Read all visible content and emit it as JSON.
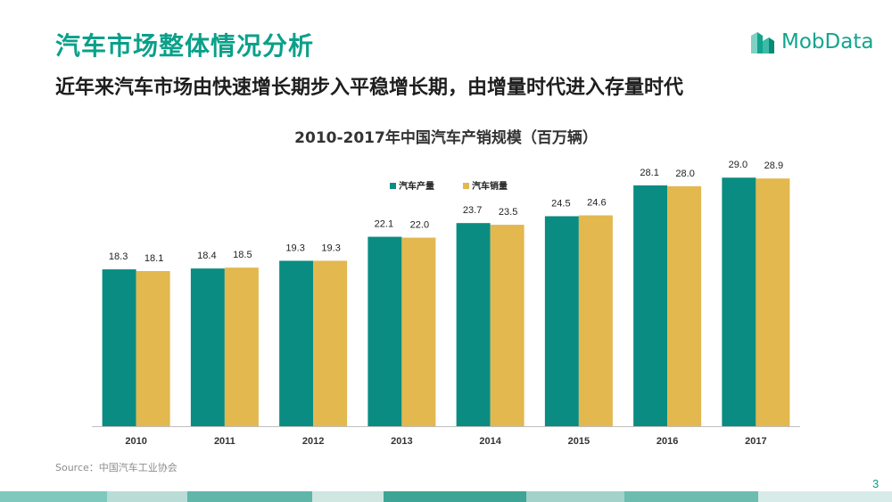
{
  "header": {
    "title": "汽车市场整体情况分析",
    "subtitle": "近年来汽车市场由快速增长期步入平稳增长期，由增量时代进入存量时代"
  },
  "logo": {
    "text": "MobData",
    "icon": "buildings-logo-icon"
  },
  "source": "Source：中国汽车工业协会",
  "page_number": "3",
  "colors": {
    "brand": "#0aa08a",
    "production": "#0a8c82",
    "sales": "#e2b84f",
    "footer_band": [
      "#7fc8bd",
      "#b9ddd6",
      "#5fb6a9",
      "#cfe6e1",
      "#3ea596",
      "#a2d2ca",
      "#6cbcb0",
      "#d7ece8"
    ]
  },
  "chart_data": {
    "type": "bar",
    "title": "2010-2017年中国汽车产销规模（百万辆）",
    "xlabel": "",
    "ylabel": "",
    "categories": [
      "2010",
      "2011",
      "2012",
      "2013",
      "2014",
      "2015",
      "2016",
      "2017"
    ],
    "series": [
      {
        "name": "汽车产量",
        "values": [
          18.3,
          18.4,
          19.3,
          22.1,
          23.7,
          24.5,
          28.1,
          29.0
        ]
      },
      {
        "name": "汽车销量",
        "values": [
          18.1,
          18.5,
          19.3,
          22.0,
          23.5,
          24.6,
          28.0,
          28.9
        ]
      }
    ],
    "data_labels": true,
    "ylim": [
      0,
      31
    ],
    "grid": false,
    "legend": "top-center"
  }
}
